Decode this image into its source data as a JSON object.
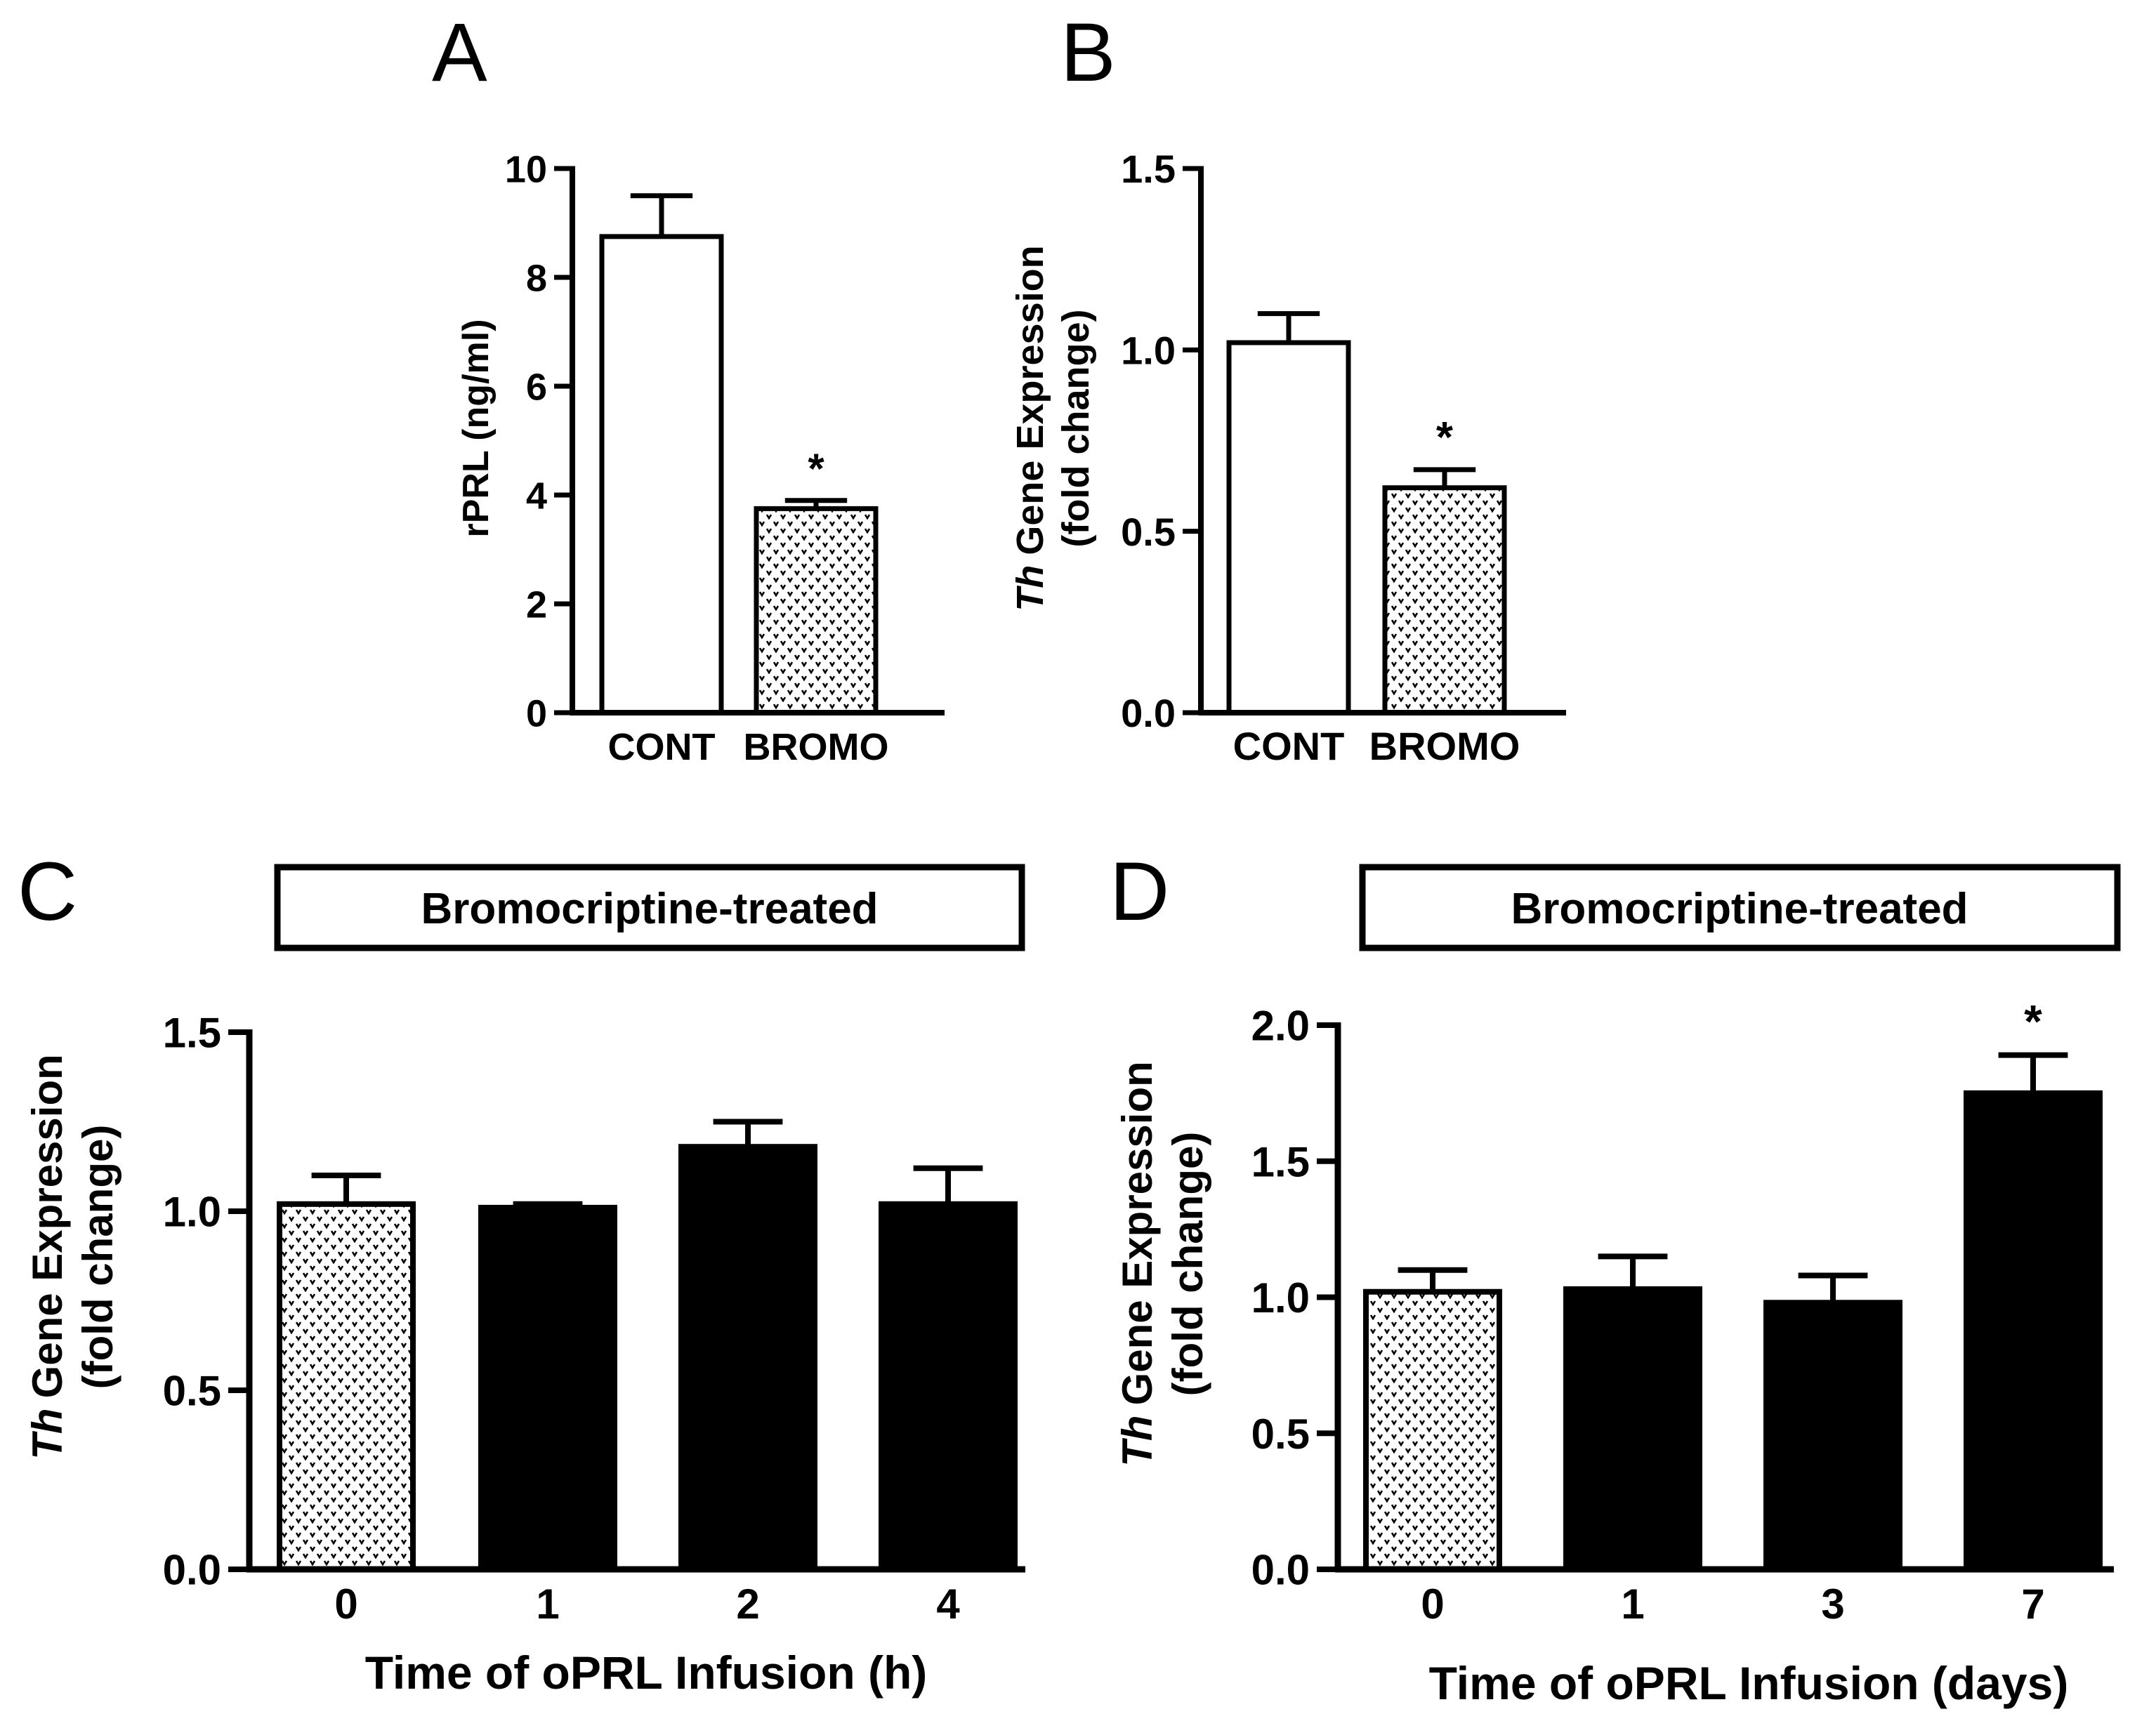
{
  "figure": {
    "colors": {
      "ink": "#000000",
      "background": "#ffffff",
      "hatch_fill": "#ffffff",
      "solid_fill": "#000000"
    }
  },
  "chart_data": [
    {
      "panel": "A",
      "type": "bar",
      "title": "",
      "box_label": "",
      "xlabel": "",
      "ylabel": "rPRL (ng/ml)",
      "ylabel_italic_prefix": "",
      "ylabel_line2": "",
      "ylim": [
        0,
        10
      ],
      "yticks": [
        "0",
        "2",
        "4",
        "6",
        "8",
        "10"
      ],
      "ytick_values": [
        0,
        2,
        4,
        6,
        8,
        10
      ],
      "grid": false,
      "categories": [
        "CONT",
        "BROMO"
      ],
      "values": [
        8.75,
        3.75
      ],
      "errors": [
        0.75,
        0.15
      ],
      "fills": [
        "open",
        "dotted"
      ],
      "annotations": [
        "",
        "*"
      ]
    },
    {
      "panel": "B",
      "type": "bar",
      "title": "",
      "box_label": "",
      "xlabel": "",
      "ylabel": "Gene Expression",
      "ylabel_italic_prefix": "Th",
      "ylabel_line2": "(fold change)",
      "ylim": [
        0,
        1.5
      ],
      "yticks": [
        "0.0",
        "0.5",
        "1.0",
        "1.5"
      ],
      "ytick_values": [
        0,
        0.5,
        1.0,
        1.5
      ],
      "grid": false,
      "categories": [
        "CONT",
        "BROMO"
      ],
      "values": [
        1.02,
        0.62
      ],
      "errors": [
        0.08,
        0.05
      ],
      "fills": [
        "open",
        "dotted"
      ],
      "annotations": [
        "",
        "*"
      ]
    },
    {
      "panel": "C",
      "type": "bar",
      "title": "",
      "box_label": "Bromocriptine-treated",
      "xlabel": "Time of oPRL Infusion (h)",
      "ylabel": "Gene Expression",
      "ylabel_italic_prefix": "Th",
      "ylabel_line2": "(fold change)",
      "ylim": [
        0,
        1.5
      ],
      "yticks": [
        "0.0",
        "0.5",
        "1.0",
        "1.5"
      ],
      "ytick_values": [
        0,
        0.5,
        1.0,
        1.5
      ],
      "grid": false,
      "categories": [
        "0",
        "1",
        "2",
        "4"
      ],
      "values": [
        1.02,
        1.01,
        1.18,
        1.02
      ],
      "errors": [
        0.08,
        0.01,
        0.07,
        0.1
      ],
      "fills": [
        "dotted",
        "solid",
        "solid",
        "solid"
      ],
      "annotations": [
        "",
        "",
        "",
        ""
      ]
    },
    {
      "panel": "D",
      "type": "bar",
      "title": "",
      "box_label": "Bromocriptine-treated",
      "xlabel": "Time of oPRL Infusion (days)",
      "ylabel": "Gene Expression",
      "ylabel_italic_prefix": "Th",
      "ylabel_line2": "(fold change)",
      "ylim": [
        0,
        2.0
      ],
      "yticks": [
        "0.0",
        "0.5",
        "1.0",
        "1.5",
        "2.0"
      ],
      "ytick_values": [
        0,
        0.5,
        1.0,
        1.5,
        2.0
      ],
      "grid": false,
      "categories": [
        "0",
        "1",
        "3",
        "7"
      ],
      "values": [
        1.02,
        1.03,
        0.98,
        1.75
      ],
      "errors": [
        0.08,
        0.12,
        0.1,
        0.14
      ],
      "fills": [
        "dotted",
        "solid",
        "solid",
        "solid"
      ],
      "annotations": [
        "",
        "",
        "",
        "*"
      ]
    }
  ]
}
